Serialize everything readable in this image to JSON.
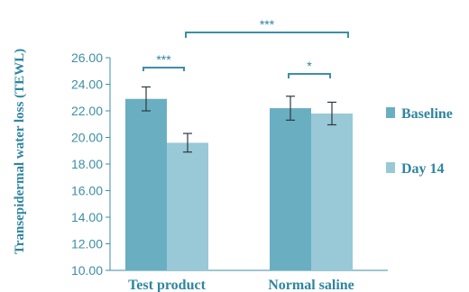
{
  "chart_data": {
    "type": "bar",
    "title": "",
    "ylabel": "Transepidermal water loss (TEWL)",
    "xlabel": "",
    "categories": [
      "Test product",
      "Normal saline"
    ],
    "series": [
      {
        "name": "Baseline",
        "values": [
          22.9,
          22.2
        ],
        "errors": [
          0.9,
          0.9
        ],
        "color": "#6aaec2"
      },
      {
        "name": "Day 14",
        "values": [
          19.6,
          21.8
        ],
        "errors": [
          0.7,
          0.85
        ],
        "color": "#99c8d6"
      }
    ],
    "ylim": [
      10,
      26
    ],
    "yticks": [
      "10.00",
      "12.00",
      "14.00",
      "16.00",
      "18.00",
      "20.00",
      "22.00",
      "24.00",
      "26.00"
    ],
    "grid": false,
    "legend_position": "right",
    "significance": [
      {
        "label": "***",
        "between": "Test product: Baseline vs Day 14"
      },
      {
        "label": "*",
        "between": "Normal saline: Baseline vs Day 14"
      },
      {
        "label": "***",
        "between": "Test product Day 14 vs Normal saline Day 14"
      }
    ],
    "axis_color": "#3d8fa6",
    "bracket_color": "#3d8fa6"
  }
}
